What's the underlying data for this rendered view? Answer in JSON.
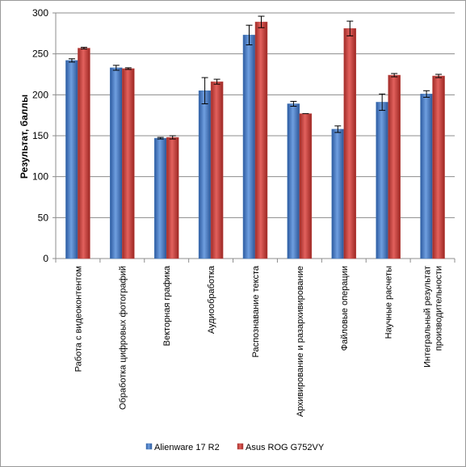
{
  "chart_data": {
    "type": "bar",
    "ylabel": "Результат, баллы",
    "xlabel": "",
    "ylim": [
      0,
      300
    ],
    "y_ticks": [
      0,
      50,
      100,
      150,
      200,
      250,
      300
    ],
    "grid": true,
    "legend_position": "bottom",
    "categories": [
      [
        "Работа с видеоконтентом"
      ],
      [
        "Обработка цифровых фотографий"
      ],
      [
        "Векторная графика"
      ],
      [
        "Аудиообработка"
      ],
      [
        "Распознавание текста"
      ],
      [
        "Архивирование и разархивирование"
      ],
      [
        "Файловые операции"
      ],
      [
        "Научные расчеты"
      ],
      [
        "Интегральный результат",
        "производительности"
      ]
    ],
    "series": [
      {
        "name": "Alienware 17 R2",
        "color": "#4a7ebb",
        "values": [
          242,
          233,
          147,
          205,
          273,
          189,
          158,
          191,
          201
        ],
        "errors": [
          2,
          3,
          1,
          16,
          12,
          3,
          4,
          10,
          4
        ]
      },
      {
        "name": "Asus ROG G752VY",
        "color": "#c0504d",
        "values": [
          257,
          232,
          148,
          216,
          289,
          177,
          281,
          224,
          223
        ],
        "errors": [
          1,
          1,
          2,
          3,
          7,
          0,
          9,
          2,
          2
        ]
      }
    ]
  }
}
